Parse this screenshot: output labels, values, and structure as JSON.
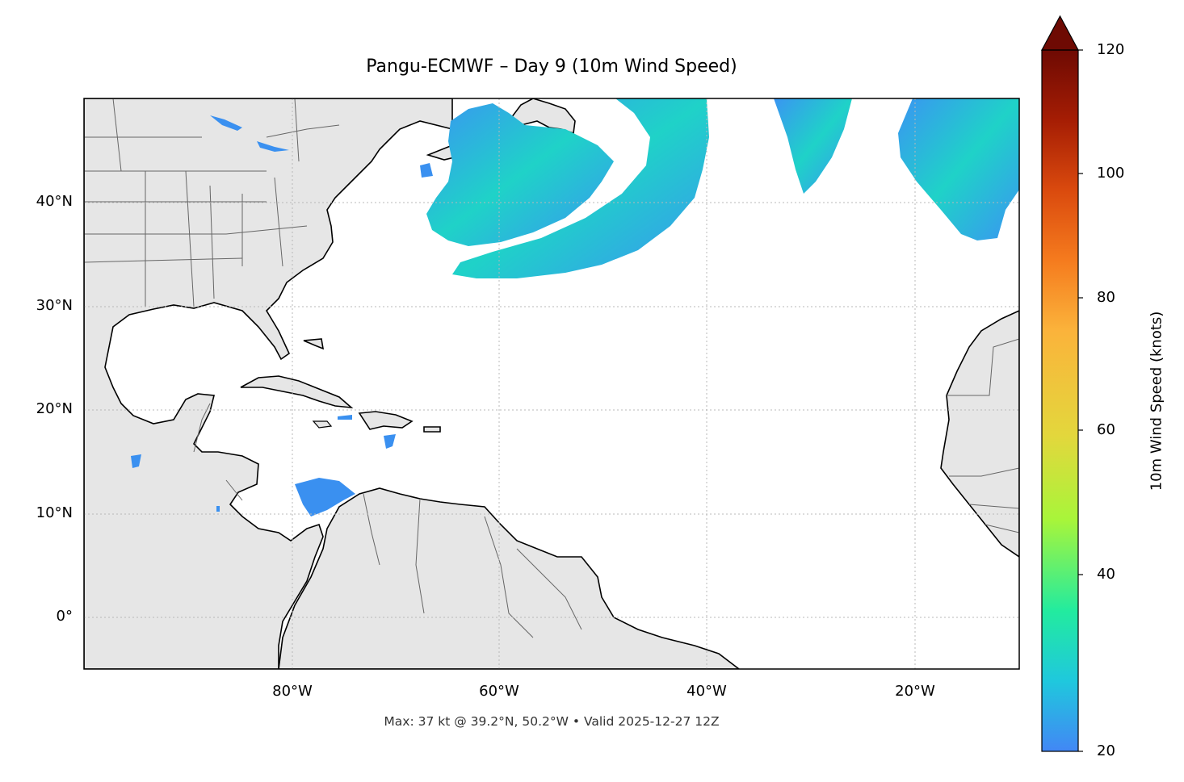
{
  "title": "Pangu-ECMWF – Day 9 (10m Wind Speed)",
  "caption": "Max: 37 kt @ 39.2°N, 50.2°W • Valid 2025-12-27 12Z",
  "map": {
    "lon_range": [
      -100,
      -10
    ],
    "lat_range": [
      -5,
      50
    ],
    "lat_ticks": [
      {
        "value": 40,
        "label": "40°N"
      },
      {
        "value": 30,
        "label": "30°N"
      },
      {
        "value": 20,
        "label": "20°N"
      },
      {
        "value": 10,
        "label": "10°N"
      },
      {
        "value": 0,
        "label": "0°"
      }
    ],
    "lon_ticks": [
      {
        "value": -80,
        "label": "80°W"
      },
      {
        "value": -60,
        "label": "60°W"
      },
      {
        "value": -40,
        "label": "40°W"
      },
      {
        "value": -20,
        "label": "20°W"
      }
    ],
    "gridlines": true,
    "land_color": "#e6e6e6",
    "ocean_color": "#ffffff"
  },
  "colorbar": {
    "label": "10m Wind Speed (knots)",
    "range": [
      20,
      120
    ],
    "ticks": [
      {
        "value": 120,
        "label": "120"
      },
      {
        "value": 100,
        "label": "100"
      },
      {
        "value": 80,
        "label": "80"
      },
      {
        "value": 60,
        "label": "60"
      },
      {
        "value": 40,
        "label": "40"
      },
      {
        "value": 20,
        "label": "20"
      }
    ],
    "colors": [
      "#4287f5",
      "#1fc8dd",
      "#22eb9f",
      "#a8f53a",
      "#e3d73c",
      "#fbb33b",
      "#f57b1e",
      "#da4a0e",
      "#a51d04",
      "#6e0a03"
    ],
    "extend": "max"
  }
}
